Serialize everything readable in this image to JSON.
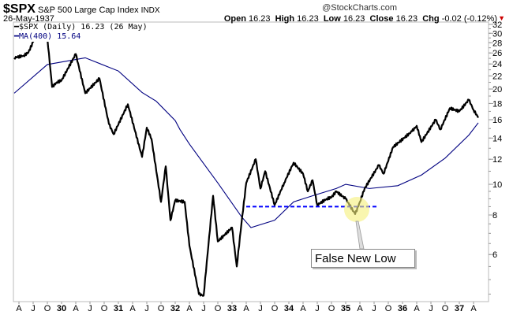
{
  "header": {
    "symbol": "$SPX",
    "name": "S&P 500 Large Cap Index",
    "exchange": "INDX",
    "watermark": "@StockCharts.com",
    "date": "26-May-1937",
    "open_label": "Open",
    "open": "16.23",
    "high_label": "High",
    "high": "16.23",
    "low_label": "Low",
    "low": "16.23",
    "close_label": "Close",
    "close": "16.23",
    "chg_label": "Chg",
    "chg": "-0.02 (-0.12%)",
    "chg_direction": "down"
  },
  "legend": {
    "price": "$SPX (Daily) 16.23 (26 May)",
    "ma": "MA(400) 15.64"
  },
  "annotation": {
    "label": "False New Low",
    "highlight_color": "#f5f07a"
  },
  "chart_data": {
    "type": "line",
    "yscale": "log",
    "ylim": [
      4.26,
      32.6
    ],
    "xlim": [
      "1929-03",
      "1937-05"
    ],
    "grid": false,
    "legend_position": "top-left",
    "y_ticks": [
      32,
      30,
      28,
      26,
      24,
      22,
      20,
      18,
      16,
      14,
      12,
      10,
      8,
      6
    ],
    "x_ticks": [
      {
        "date": "1929-04",
        "label": "A"
      },
      {
        "date": "1929-07",
        "label": "J"
      },
      {
        "date": "1929-10",
        "label": "O"
      },
      {
        "date": "1930-01",
        "label": "30",
        "year": true
      },
      {
        "date": "1930-04",
        "label": "A"
      },
      {
        "date": "1930-07",
        "label": "J"
      },
      {
        "date": "1930-10",
        "label": "O"
      },
      {
        "date": "1931-01",
        "label": "31",
        "year": true
      },
      {
        "date": "1931-04",
        "label": "A"
      },
      {
        "date": "1931-07",
        "label": "J"
      },
      {
        "date": "1931-10",
        "label": "O"
      },
      {
        "date": "1932-01",
        "label": "32",
        "year": true
      },
      {
        "date": "1932-04",
        "label": "A"
      },
      {
        "date": "1932-07",
        "label": "J"
      },
      {
        "date": "1932-10",
        "label": "O"
      },
      {
        "date": "1933-01",
        "label": "33",
        "year": true
      },
      {
        "date": "1933-04",
        "label": "A"
      },
      {
        "date": "1933-07",
        "label": "J"
      },
      {
        "date": "1933-10",
        "label": "O"
      },
      {
        "date": "1934-01",
        "label": "34",
        "year": true
      },
      {
        "date": "1934-04",
        "label": "A"
      },
      {
        "date": "1934-07",
        "label": "J"
      },
      {
        "date": "1934-10",
        "label": "O"
      },
      {
        "date": "1935-01",
        "label": "35",
        "year": true
      },
      {
        "date": "1935-04",
        "label": "A"
      },
      {
        "date": "1935-07",
        "label": "J"
      },
      {
        "date": "1935-10",
        "label": "O"
      },
      {
        "date": "1936-01",
        "label": "36",
        "year": true
      },
      {
        "date": "1936-04",
        "label": "A"
      },
      {
        "date": "1936-07",
        "label": "J"
      },
      {
        "date": "1936-10",
        "label": "O"
      },
      {
        "date": "1937-01",
        "label": "37",
        "year": true
      },
      {
        "date": "1937-04",
        "label": "A"
      }
    ],
    "series": [
      {
        "name": "$SPX (Daily)",
        "color": "#000000",
        "points": [
          [
            "1929-03",
            25.1
          ],
          [
            "1929-05",
            25.5
          ],
          [
            "1929-06",
            26.1
          ],
          [
            "1929-07",
            28.2
          ],
          [
            "1929-08",
            30.5
          ],
          [
            "1929-09",
            31.9
          ],
          [
            "1929-10",
            29.0
          ],
          [
            "1929-11",
            20.3
          ],
          [
            "1929-12",
            21.0
          ],
          [
            "1930-01",
            21.3
          ],
          [
            "1930-04",
            25.8
          ],
          [
            "1930-06",
            19.4
          ],
          [
            "1930-09",
            21.6
          ],
          [
            "1930-11",
            15.5
          ],
          [
            "1930-12",
            14.4
          ],
          [
            "1931-03",
            17.9
          ],
          [
            "1931-06",
            12.2
          ],
          [
            "1931-07",
            15.1
          ],
          [
            "1931-08",
            13.9
          ],
          [
            "1931-10",
            8.8
          ],
          [
            "1931-11",
            11.4
          ],
          [
            "1931-12",
            7.7
          ],
          [
            "1932-01",
            8.9
          ],
          [
            "1932-03",
            8.8
          ],
          [
            "1932-04",
            6.4
          ],
          [
            "1932-06",
            4.5
          ],
          [
            "1932-07",
            4.45
          ],
          [
            "1932-09",
            9.2
          ],
          [
            "1932-10",
            6.6
          ],
          [
            "1933-01",
            7.3
          ],
          [
            "1933-02",
            5.5
          ],
          [
            "1933-03",
            7.55
          ],
          [
            "1933-04",
            10.1
          ],
          [
            "1933-06",
            12.0
          ],
          [
            "1933-07",
            9.7
          ],
          [
            "1933-08",
            11.0
          ],
          [
            "1933-10",
            8.6
          ],
          [
            "1933-12",
            10.1
          ],
          [
            "1934-02",
            11.7
          ],
          [
            "1934-04",
            10.8
          ],
          [
            "1934-05",
            9.5
          ],
          [
            "1934-06",
            10.3
          ],
          [
            "1934-07",
            8.6
          ],
          [
            "1934-09",
            9.0
          ],
          [
            "1934-10",
            9.1
          ],
          [
            "1934-11",
            9.5
          ],
          [
            "1935-01",
            9.0
          ],
          [
            "1935-03",
            8.05
          ],
          [
            "1935-04",
            8.8
          ],
          [
            "1935-05",
            9.7
          ],
          [
            "1935-08",
            11.5
          ],
          [
            "1935-09",
            10.8
          ],
          [
            "1935-11",
            13.1
          ],
          [
            "1936-03",
            14.7
          ],
          [
            "1936-04",
            15.3
          ],
          [
            "1936-05",
            13.6
          ],
          [
            "1936-08",
            16.0
          ],
          [
            "1936-09",
            14.9
          ],
          [
            "1936-11",
            17.4
          ],
          [
            "1937-01",
            17.0
          ],
          [
            "1937-03",
            18.5
          ],
          [
            "1937-04",
            17.2
          ],
          [
            "1937-05",
            16.23
          ]
        ]
      },
      {
        "name": "MA(400)",
        "color": "#000080",
        "points": [
          [
            "1929-03",
            19.4
          ],
          [
            "1929-10",
            23.9
          ],
          [
            "1930-06",
            25.1
          ],
          [
            "1931-01",
            22.8
          ],
          [
            "1931-06",
            19.5
          ],
          [
            "1931-09",
            18.3
          ],
          [
            "1932-01",
            15.9
          ],
          [
            "1932-02",
            14.9
          ],
          [
            "1932-04",
            13.4
          ],
          [
            "1932-10",
            10.1
          ],
          [
            "1933-03",
            7.9
          ],
          [
            "1933-05",
            7.3
          ],
          [
            "1933-10",
            7.7
          ],
          [
            "1934-02",
            8.8
          ],
          [
            "1934-06",
            9.2
          ],
          [
            "1934-11",
            9.7
          ],
          [
            "1935-01",
            10.0
          ],
          [
            "1935-06",
            9.7
          ],
          [
            "1935-12",
            9.9
          ],
          [
            "1936-05",
            10.7
          ],
          [
            "1936-10",
            12.1
          ],
          [
            "1937-03",
            14.3
          ],
          [
            "1937-05",
            15.64
          ]
        ]
      }
    ],
    "support_line": {
      "value": 8.5,
      "from": "1933-04",
      "to": "1935-08",
      "color": "#0000ff",
      "style": "dashed"
    },
    "highlight": {
      "date": "1935-03",
      "value": 8.05
    }
  }
}
